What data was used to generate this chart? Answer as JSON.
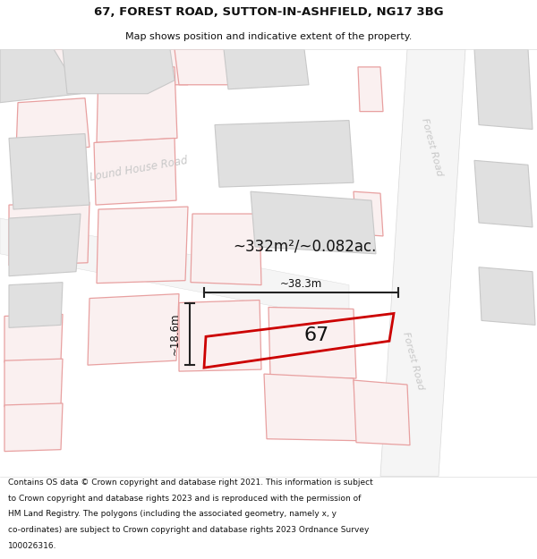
{
  "title_line1": "67, FOREST ROAD, SUTTON-IN-ASHFIELD, NG17 3BG",
  "title_line2": "Map shows position and indicative extent of the property.",
  "footer_text": "Contains OS data © Crown copyright and database right 2021. This information is subject to Crown copyright and database rights 2023 and is reproduced with the permission of HM Land Registry. The polygons (including the associated geometry, namely x, y co-ordinates) are subject to Crown copyright and database rights 2023 Ordnance Survey 100026316.",
  "area_text": "~332m²/~0.082ac.",
  "width_text": "~38.3m",
  "height_text": "~18.6m",
  "number_text": "67",
  "road_label_1": "Lound House Road",
  "road_label_2a": "Forest Road",
  "road_label_2b": "Forest Road",
  "map_bg": "#f8f8f8",
  "title_bg": "#ffffff",
  "footer_bg": "#ffffff",
  "building_fill": "#e0e0e0",
  "building_edge": "#c8c8c8",
  "pink_outline": "#e8a0a0",
  "pink_fill": "#faf0f0",
  "property_edge": "#cc0000",
  "dim_color": "#222222",
  "road_label_color": "#c0c0c0",
  "text_color": "#111111"
}
